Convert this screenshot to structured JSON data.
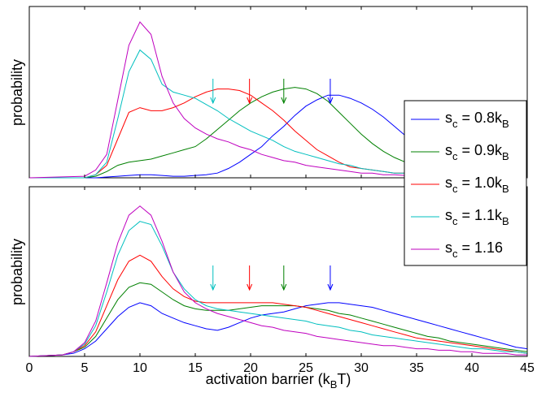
{
  "chart_data": [
    {
      "type": "line",
      "ylabel": "probability",
      "xlim": [
        0,
        45
      ],
      "ylim": [
        0,
        1.0
      ],
      "grid": false,
      "series": [
        {
          "name": "s_c = 0.8k_B",
          "color": "#0000ff",
          "x": [
            0,
            5,
            6,
            7,
            8,
            9,
            10,
            11,
            12,
            13,
            14,
            15,
            16,
            17,
            18,
            19,
            20,
            21,
            22,
            23,
            24,
            25,
            26,
            27,
            28,
            29,
            30,
            31,
            32,
            33,
            34,
            35,
            36,
            37,
            38,
            39,
            40,
            41,
            42,
            43,
            44,
            45
          ],
          "y": [
            0,
            0,
            0,
            0.005,
            0.01,
            0.015,
            0.02,
            0.02,
            0.015,
            0.01,
            0.01,
            0.015,
            0.02,
            0.03,
            0.06,
            0.1,
            0.15,
            0.2,
            0.27,
            0.33,
            0.4,
            0.46,
            0.5,
            0.53,
            0.53,
            0.51,
            0.48,
            0.44,
            0.39,
            0.33,
            0.27,
            0.21,
            0.15,
            0.11,
            0.08,
            0.06,
            0.04,
            0.03,
            0.02,
            0.01,
            0.01,
            0.005
          ]
        },
        {
          "name": "s_c = 0.9k_B",
          "color": "#008000",
          "x": [
            0,
            5,
            6,
            7,
            8,
            9,
            10,
            11,
            12,
            13,
            14,
            15,
            16,
            17,
            18,
            19,
            20,
            21,
            22,
            23,
            24,
            25,
            26,
            27,
            28,
            29,
            30,
            31,
            32,
            33,
            34,
            35,
            36,
            37,
            38,
            39,
            40,
            41,
            42,
            43,
            44,
            45
          ],
          "y": [
            0,
            0,
            0.01,
            0.04,
            0.08,
            0.1,
            0.11,
            0.12,
            0.14,
            0.16,
            0.18,
            0.2,
            0.25,
            0.31,
            0.37,
            0.43,
            0.48,
            0.52,
            0.55,
            0.57,
            0.58,
            0.57,
            0.54,
            0.49,
            0.42,
            0.35,
            0.28,
            0.22,
            0.17,
            0.13,
            0.1,
            0.08,
            0.06,
            0.04,
            0.03,
            0.02,
            0.015,
            0.01,
            0.01,
            0.005,
            0.005,
            0.003
          ]
        },
        {
          "name": "s_c = 1.0k_B",
          "color": "#ff0000",
          "x": [
            0,
            5,
            6,
            7,
            8,
            9,
            10,
            11,
            12,
            13,
            14,
            15,
            16,
            17,
            18,
            19,
            20,
            21,
            22,
            23,
            24,
            25,
            26,
            27,
            28,
            29,
            30,
            31,
            32,
            33,
            34,
            35,
            36,
            37,
            38,
            39,
            40,
            41,
            42,
            43,
            44,
            45
          ],
          "y": [
            0,
            0,
            0.02,
            0.08,
            0.25,
            0.42,
            0.45,
            0.43,
            0.43,
            0.45,
            0.48,
            0.52,
            0.55,
            0.57,
            0.57,
            0.56,
            0.53,
            0.48,
            0.43,
            0.37,
            0.3,
            0.24,
            0.18,
            0.14,
            0.1,
            0.07,
            0.06,
            0.05,
            0.04,
            0.03,
            0.03,
            0.02,
            0.02,
            0.015,
            0.01,
            0.01,
            0.01,
            0.005,
            0.005,
            0.005,
            0.003,
            0.003
          ]
        },
        {
          "name": "s_c = 1.1k_B",
          "color": "#00bfbf",
          "x": [
            0,
            5,
            6,
            7,
            8,
            9,
            10,
            11,
            12,
            13,
            14,
            15,
            16,
            17,
            18,
            19,
            20,
            21,
            22,
            23,
            24,
            25,
            26,
            27,
            28,
            29,
            30,
            31,
            32,
            33,
            34,
            35,
            36,
            37,
            38,
            39,
            40,
            41,
            42,
            43,
            44,
            45
          ],
          "y": [
            0,
            0,
            0.02,
            0.1,
            0.38,
            0.68,
            0.82,
            0.76,
            0.6,
            0.55,
            0.53,
            0.51,
            0.47,
            0.43,
            0.38,
            0.34,
            0.3,
            0.27,
            0.24,
            0.2,
            0.17,
            0.15,
            0.13,
            0.11,
            0.09,
            0.08,
            0.06,
            0.05,
            0.04,
            0.03,
            0.03,
            0.02,
            0.02,
            0.015,
            0.01,
            0.01,
            0.01,
            0.005,
            0.005,
            0.005,
            0.003,
            0.003
          ]
        },
        {
          "name": "s_c = 1.16",
          "color": "#bf00bf",
          "x": [
            0,
            5,
            6,
            7,
            8,
            9,
            10,
            11,
            12,
            13,
            14,
            15,
            16,
            17,
            18,
            19,
            20,
            21,
            22,
            23,
            24,
            25,
            26,
            27,
            28,
            29,
            30,
            31,
            32,
            33,
            34,
            35,
            36,
            37,
            38,
            39,
            40,
            41,
            42,
            43,
            44,
            45
          ],
          "y": [
            0,
            0.01,
            0.05,
            0.15,
            0.5,
            0.85,
            1.0,
            0.92,
            0.65,
            0.48,
            0.38,
            0.32,
            0.28,
            0.25,
            0.23,
            0.2,
            0.18,
            0.15,
            0.13,
            0.11,
            0.1,
            0.08,
            0.07,
            0.06,
            0.05,
            0.04,
            0.03,
            0.03,
            0.02,
            0.02,
            0.015,
            0.01,
            0.01,
            0.01,
            0.005,
            0.005,
            0.005,
            0.003,
            0.003,
            0.002,
            0.002,
            0.002
          ]
        }
      ],
      "arrows": [
        {
          "x": 16.6,
          "color": "#00bfbf"
        },
        {
          "x": 19.9,
          "color": "#ff0000"
        },
        {
          "x": 23.0,
          "color": "#008000"
        },
        {
          "x": 27.2,
          "color": "#0000ff"
        }
      ]
    },
    {
      "type": "line",
      "xlabel": "activation barrier (k_B T)",
      "ylabel": "probability",
      "xlim": [
        0,
        45
      ],
      "ylim": [
        0,
        1.0
      ],
      "xticks": [
        0,
        5,
        10,
        15,
        20,
        25,
        30,
        35,
        40,
        45
      ],
      "grid": false,
      "series": [
        {
          "name": "s_c = 0.8k_B",
          "color": "#0000ff",
          "x": [
            0,
            3,
            4,
            5,
            6,
            7,
            8,
            9,
            10,
            11,
            12,
            13,
            14,
            15,
            16,
            17,
            18,
            19,
            20,
            21,
            22,
            23,
            24,
            25,
            26,
            27,
            28,
            29,
            30,
            31,
            32,
            33,
            34,
            35,
            36,
            37,
            38,
            39,
            40,
            41,
            42,
            43,
            44,
            45
          ],
          "y": [
            0,
            0.01,
            0.02,
            0.05,
            0.1,
            0.18,
            0.26,
            0.32,
            0.35,
            0.33,
            0.28,
            0.25,
            0.22,
            0.2,
            0.18,
            0.17,
            0.19,
            0.22,
            0.25,
            0.27,
            0.28,
            0.29,
            0.31,
            0.33,
            0.34,
            0.35,
            0.35,
            0.34,
            0.33,
            0.32,
            0.3,
            0.28,
            0.26,
            0.24,
            0.22,
            0.2,
            0.18,
            0.16,
            0.14,
            0.12,
            0.1,
            0.08,
            0.06,
            0.05
          ]
        },
        {
          "name": "s_c = 0.9k_B",
          "color": "#008000",
          "x": [
            0,
            3,
            4,
            5,
            6,
            7,
            8,
            9,
            10,
            11,
            12,
            13,
            14,
            15,
            16,
            17,
            18,
            19,
            20,
            21,
            22,
            23,
            24,
            25,
            26,
            27,
            28,
            29,
            30,
            31,
            32,
            33,
            34,
            35,
            36,
            37,
            38,
            39,
            40,
            41,
            42,
            43,
            44,
            45
          ],
          "y": [
            0,
            0.01,
            0.03,
            0.06,
            0.13,
            0.25,
            0.37,
            0.45,
            0.48,
            0.47,
            0.42,
            0.37,
            0.33,
            0.31,
            0.3,
            0.3,
            0.3,
            0.31,
            0.32,
            0.33,
            0.33,
            0.33,
            0.33,
            0.32,
            0.31,
            0.3,
            0.28,
            0.27,
            0.25,
            0.23,
            0.21,
            0.19,
            0.17,
            0.15,
            0.13,
            0.12,
            0.1,
            0.09,
            0.08,
            0.07,
            0.06,
            0.05,
            0.04,
            0.03
          ]
        },
        {
          "name": "s_c = 1.0k_B",
          "color": "#ff0000",
          "x": [
            0,
            3,
            4,
            5,
            6,
            7,
            8,
            9,
            10,
            11,
            12,
            13,
            14,
            15,
            16,
            17,
            18,
            19,
            20,
            21,
            22,
            23,
            24,
            25,
            26,
            27,
            28,
            29,
            30,
            31,
            32,
            33,
            34,
            35,
            36,
            37,
            38,
            39,
            40,
            41,
            42,
            43,
            44,
            45
          ],
          "y": [
            0,
            0.01,
            0.03,
            0.07,
            0.16,
            0.33,
            0.5,
            0.62,
            0.66,
            0.62,
            0.52,
            0.44,
            0.39,
            0.36,
            0.35,
            0.35,
            0.35,
            0.35,
            0.35,
            0.35,
            0.35,
            0.34,
            0.33,
            0.32,
            0.3,
            0.28,
            0.26,
            0.24,
            0.22,
            0.2,
            0.18,
            0.16,
            0.14,
            0.12,
            0.11,
            0.1,
            0.09,
            0.08,
            0.07,
            0.06,
            0.05,
            0.04,
            0.03,
            0.02
          ]
        },
        {
          "name": "s_c = 1.1k_B",
          "color": "#00bfbf",
          "x": [
            0,
            3,
            4,
            5,
            6,
            7,
            8,
            9,
            10,
            11,
            12,
            13,
            14,
            15,
            16,
            17,
            18,
            19,
            20,
            21,
            22,
            23,
            24,
            25,
            26,
            27,
            28,
            29,
            30,
            31,
            32,
            33,
            34,
            35,
            36,
            37,
            38,
            39,
            40,
            41,
            42,
            43,
            44,
            45
          ],
          "y": [
            0,
            0.01,
            0.03,
            0.08,
            0.2,
            0.42,
            0.66,
            0.82,
            0.88,
            0.86,
            0.72,
            0.55,
            0.44,
            0.37,
            0.33,
            0.31,
            0.3,
            0.29,
            0.28,
            0.27,
            0.26,
            0.25,
            0.24,
            0.23,
            0.21,
            0.2,
            0.19,
            0.17,
            0.16,
            0.14,
            0.13,
            0.12,
            0.11,
            0.1,
            0.09,
            0.08,
            0.07,
            0.06,
            0.05,
            0.05,
            0.04,
            0.03,
            0.03,
            0.02
          ]
        },
        {
          "name": "s_c = 1.16",
          "color": "#bf00bf",
          "x": [
            0,
            3,
            4,
            5,
            6,
            7,
            8,
            9,
            10,
            11,
            12,
            13,
            14,
            15,
            16,
            17,
            18,
            19,
            20,
            21,
            22,
            23,
            24,
            25,
            26,
            27,
            28,
            29,
            30,
            31,
            32,
            33,
            34,
            35,
            36,
            37,
            38,
            39,
            40,
            41,
            42,
            43,
            44,
            45
          ],
          "y": [
            0,
            0.01,
            0.03,
            0.09,
            0.23,
            0.48,
            0.74,
            0.92,
            0.98,
            0.92,
            0.75,
            0.55,
            0.42,
            0.35,
            0.31,
            0.28,
            0.26,
            0.24,
            0.22,
            0.2,
            0.19,
            0.17,
            0.16,
            0.15,
            0.13,
            0.12,
            0.11,
            0.1,
            0.09,
            0.08,
            0.07,
            0.07,
            0.06,
            0.05,
            0.05,
            0.04,
            0.04,
            0.03,
            0.03,
            0.02,
            0.02,
            0.02,
            0.01,
            0.01
          ]
        }
      ],
      "arrows": [
        {
          "x": 16.6,
          "color": "#00bfbf"
        },
        {
          "x": 19.9,
          "color": "#ff0000"
        },
        {
          "x": 23.0,
          "color": "#008000"
        },
        {
          "x": 27.2,
          "color": "#0000ff"
        }
      ]
    }
  ],
  "legend": {
    "placement": "right",
    "entries": [
      {
        "base": "s",
        "sub1": "c",
        "mid": " = 0.8k",
        "sub2": "B",
        "color": "#0000ff"
      },
      {
        "base": "s",
        "sub1": "c",
        "mid": " = 0.9k",
        "sub2": "B",
        "color": "#008000"
      },
      {
        "base": "s",
        "sub1": "c",
        "mid": " = 1.0k",
        "sub2": "B",
        "color": "#ff0000"
      },
      {
        "base": "s",
        "sub1": "c",
        "mid": " = 1.1k",
        "sub2": "B",
        "color": "#00bfbf"
      },
      {
        "base": "s",
        "sub1": "c",
        "mid": " = 1.16",
        "sub2": "",
        "color": "#bf00bf"
      }
    ]
  },
  "xlabel_parts": {
    "pre": "activation barrier (k",
    "sub": "B",
    "post": "T)"
  },
  "ylabel_top": "probability",
  "ylabel_bottom": "probability"
}
